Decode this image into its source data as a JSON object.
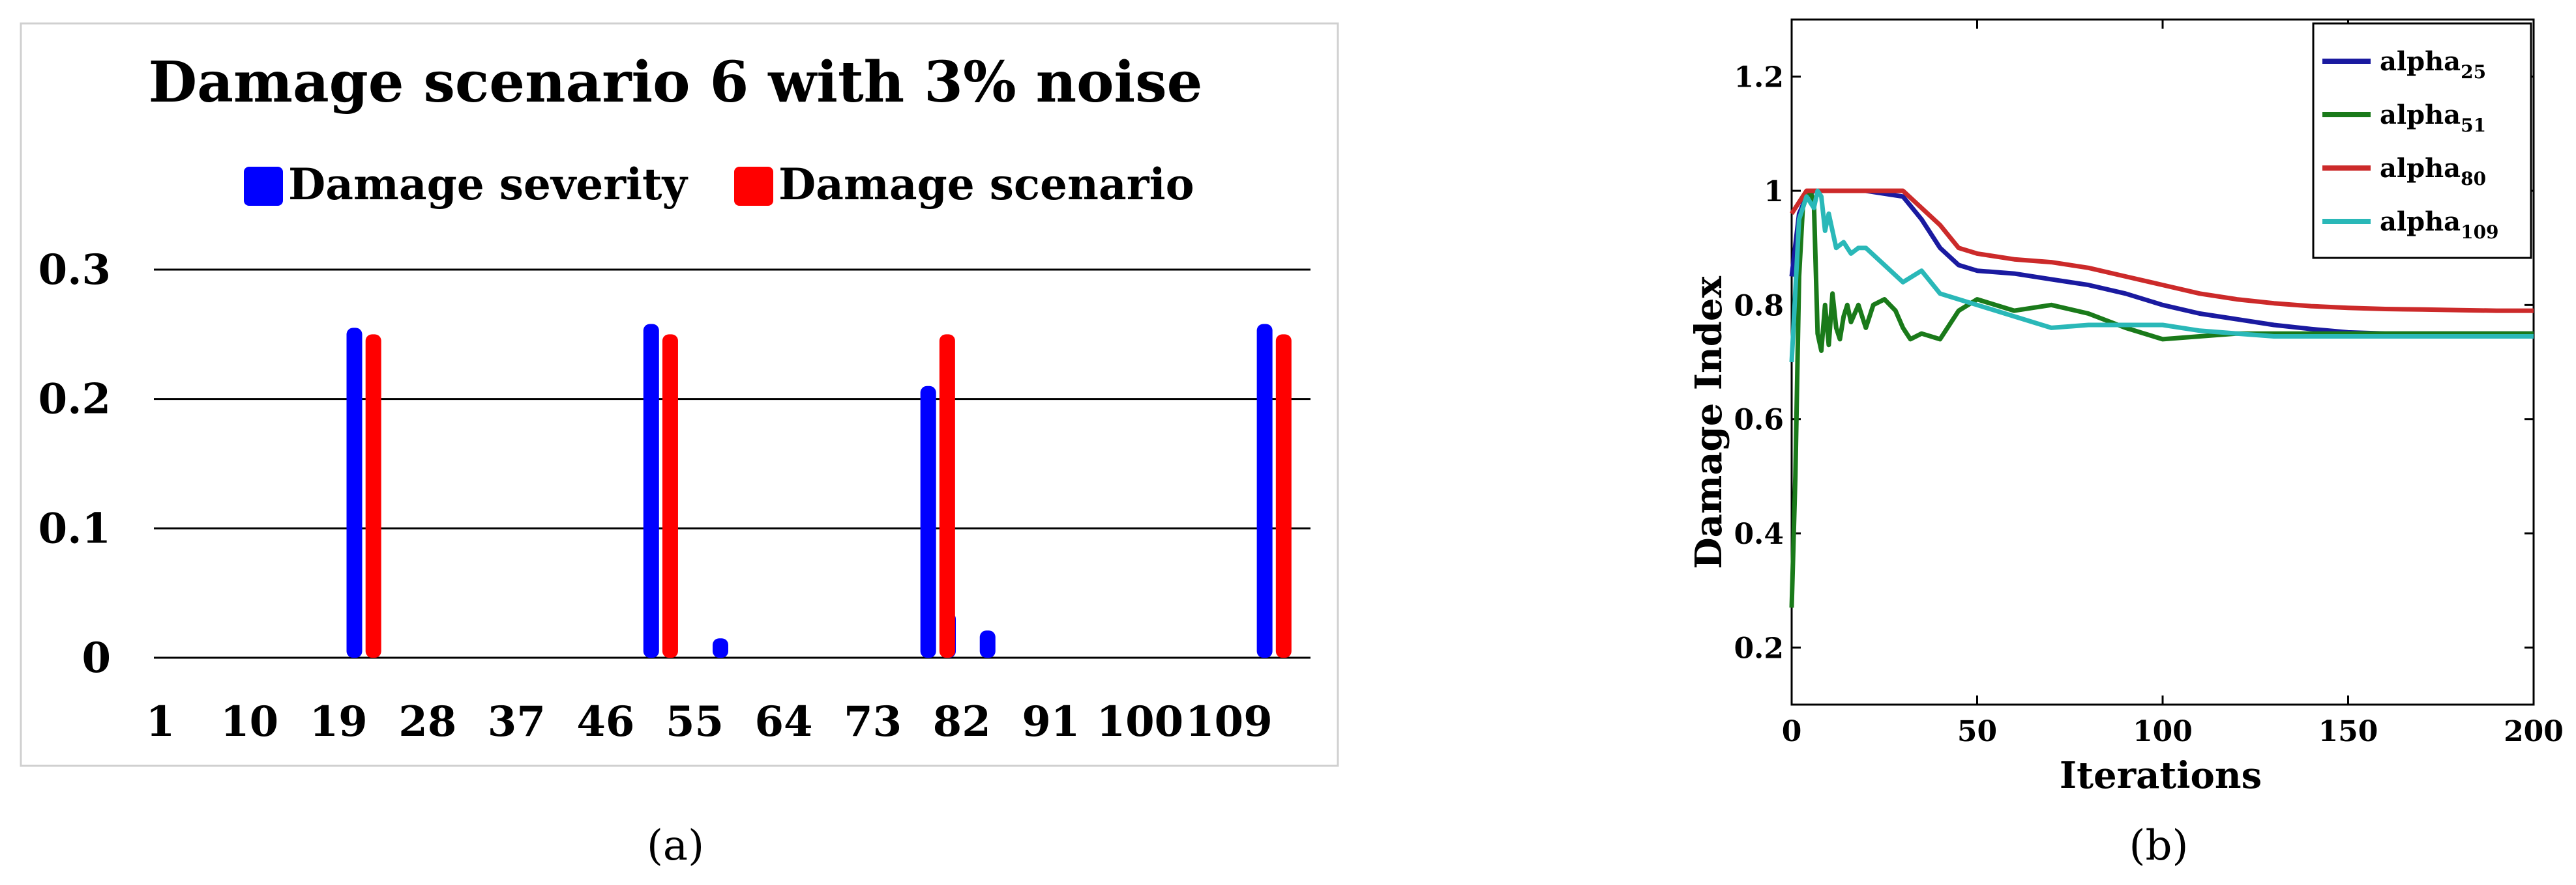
{
  "chart_data": [
    {
      "type": "bar",
      "panel_label": "(a)",
      "title": "Damage scenario 6 with 3% noise",
      "legend_position": "top",
      "ylim": [
        0,
        0.3
      ],
      "yticks": [
        "0",
        "0.1",
        "0.2",
        "0.3"
      ],
      "grid": true,
      "xticks": [
        "1",
        "10",
        "19",
        "28",
        "37",
        "46",
        "55",
        "64",
        "73",
        "82",
        "91",
        "100",
        "109"
      ],
      "xlim": [
        1,
        115
      ],
      "series": [
        {
          "name": "Damage severity",
          "color": "#0000ff",
          "points": [
            {
              "x": 21,
              "y": 0.255
            },
            {
              "x": 51,
              "y": 0.258
            },
            {
              "x": 58,
              "y": 0.015
            },
            {
              "x": 79,
              "y": 0.21
            },
            {
              "x": 81,
              "y": 0.035
            },
            {
              "x": 85,
              "y": 0.021
            },
            {
              "x": 113,
              "y": 0.258
            }
          ]
        },
        {
          "name": "Damage scenario",
          "color": "#ff0000",
          "points": [
            {
              "x": 22,
              "y": 0.25
            },
            {
              "x": 52,
              "y": 0.25
            },
            {
              "x": 80,
              "y": 0.25
            },
            {
              "x": 114,
              "y": 0.25
            }
          ]
        }
      ]
    },
    {
      "type": "line",
      "panel_label": "(b)",
      "xlabel": "Iterations",
      "ylabel": "Damage Index",
      "xlim": [
        0,
        200
      ],
      "ylim": [
        0.1,
        1.3
      ],
      "xticks": [
        0,
        50,
        100,
        150,
        200
      ],
      "yticks": [
        0.2,
        0.4,
        0.6,
        0.8,
        1,
        1.2
      ],
      "ytick_labels": [
        "0.2",
        "0.4",
        "0.6",
        "0.8",
        "1",
        "1.2"
      ],
      "legend_position": "top-right",
      "series": [
        {
          "name": "alpha",
          "subscript": "25",
          "color": "#1a1aa0",
          "x": [
            0,
            2,
            4,
            6,
            8,
            10,
            20,
            30,
            35,
            40,
            45,
            50,
            60,
            70,
            80,
            90,
            100,
            110,
            120,
            130,
            140,
            150,
            160,
            170,
            180,
            190,
            200
          ],
          "y": [
            0.85,
            0.96,
            0.99,
            1.0,
            1.0,
            1.0,
            1.0,
            0.99,
            0.95,
            0.9,
            0.87,
            0.86,
            0.855,
            0.845,
            0.835,
            0.82,
            0.8,
            0.785,
            0.775,
            0.765,
            0.758,
            0.752,
            0.75,
            0.75,
            0.75,
            0.75,
            0.75
          ]
        },
        {
          "name": "alpha",
          "subscript": "51",
          "color": "#1a7a1a",
          "x": [
            0,
            1,
            2,
            3,
            4,
            5,
            6,
            7,
            8,
            9,
            10,
            11,
            12,
            13,
            14,
            15,
            16,
            18,
            20,
            22,
            25,
            28,
            30,
            32,
            35,
            40,
            45,
            50,
            60,
            70,
            80,
            90,
            100,
            110,
            120,
            130,
            140,
            150,
            160,
            170,
            180,
            190,
            200
          ],
          "y": [
            0.27,
            0.5,
            0.85,
            0.97,
            0.99,
            1.0,
            0.98,
            0.75,
            0.72,
            0.8,
            0.73,
            0.82,
            0.76,
            0.74,
            0.78,
            0.8,
            0.77,
            0.8,
            0.76,
            0.8,
            0.81,
            0.79,
            0.76,
            0.74,
            0.75,
            0.74,
            0.79,
            0.81,
            0.79,
            0.8,
            0.785,
            0.76,
            0.74,
            0.745,
            0.75,
            0.75,
            0.75,
            0.75,
            0.75,
            0.75,
            0.75,
            0.75,
            0.75
          ]
        },
        {
          "name": "alpha",
          "subscript": "80",
          "color": "#cc2a2a",
          "x": [
            0,
            2,
            4,
            6,
            8,
            10,
            20,
            30,
            35,
            40,
            45,
            50,
            60,
            70,
            80,
            90,
            100,
            110,
            120,
            130,
            140,
            150,
            160,
            170,
            180,
            190,
            200
          ],
          "y": [
            0.96,
            0.98,
            1.0,
            1.0,
            1.0,
            1.0,
            1.0,
            1.0,
            0.97,
            0.94,
            0.9,
            0.89,
            0.88,
            0.875,
            0.865,
            0.85,
            0.835,
            0.82,
            0.81,
            0.803,
            0.798,
            0.795,
            0.793,
            0.792,
            0.791,
            0.79,
            0.79
          ]
        },
        {
          "name": "alpha",
          "subscript": "109",
          "color": "#2ab8b8",
          "x": [
            0,
            2,
            4,
            6,
            7,
            8,
            9,
            10,
            12,
            14,
            16,
            18,
            20,
            25,
            30,
            35,
            40,
            45,
            50,
            60,
            70,
            80,
            90,
            100,
            110,
            120,
            130,
            140,
            150,
            160,
            170,
            180,
            190,
            200
          ],
          "y": [
            0.7,
            0.95,
            0.99,
            0.97,
            1.0,
            0.99,
            0.93,
            0.96,
            0.9,
            0.91,
            0.89,
            0.9,
            0.9,
            0.87,
            0.84,
            0.86,
            0.82,
            0.81,
            0.8,
            0.78,
            0.76,
            0.765,
            0.765,
            0.765,
            0.755,
            0.75,
            0.745,
            0.745,
            0.745,
            0.745,
            0.745,
            0.745,
            0.745,
            0.745
          ]
        }
      ]
    }
  ]
}
